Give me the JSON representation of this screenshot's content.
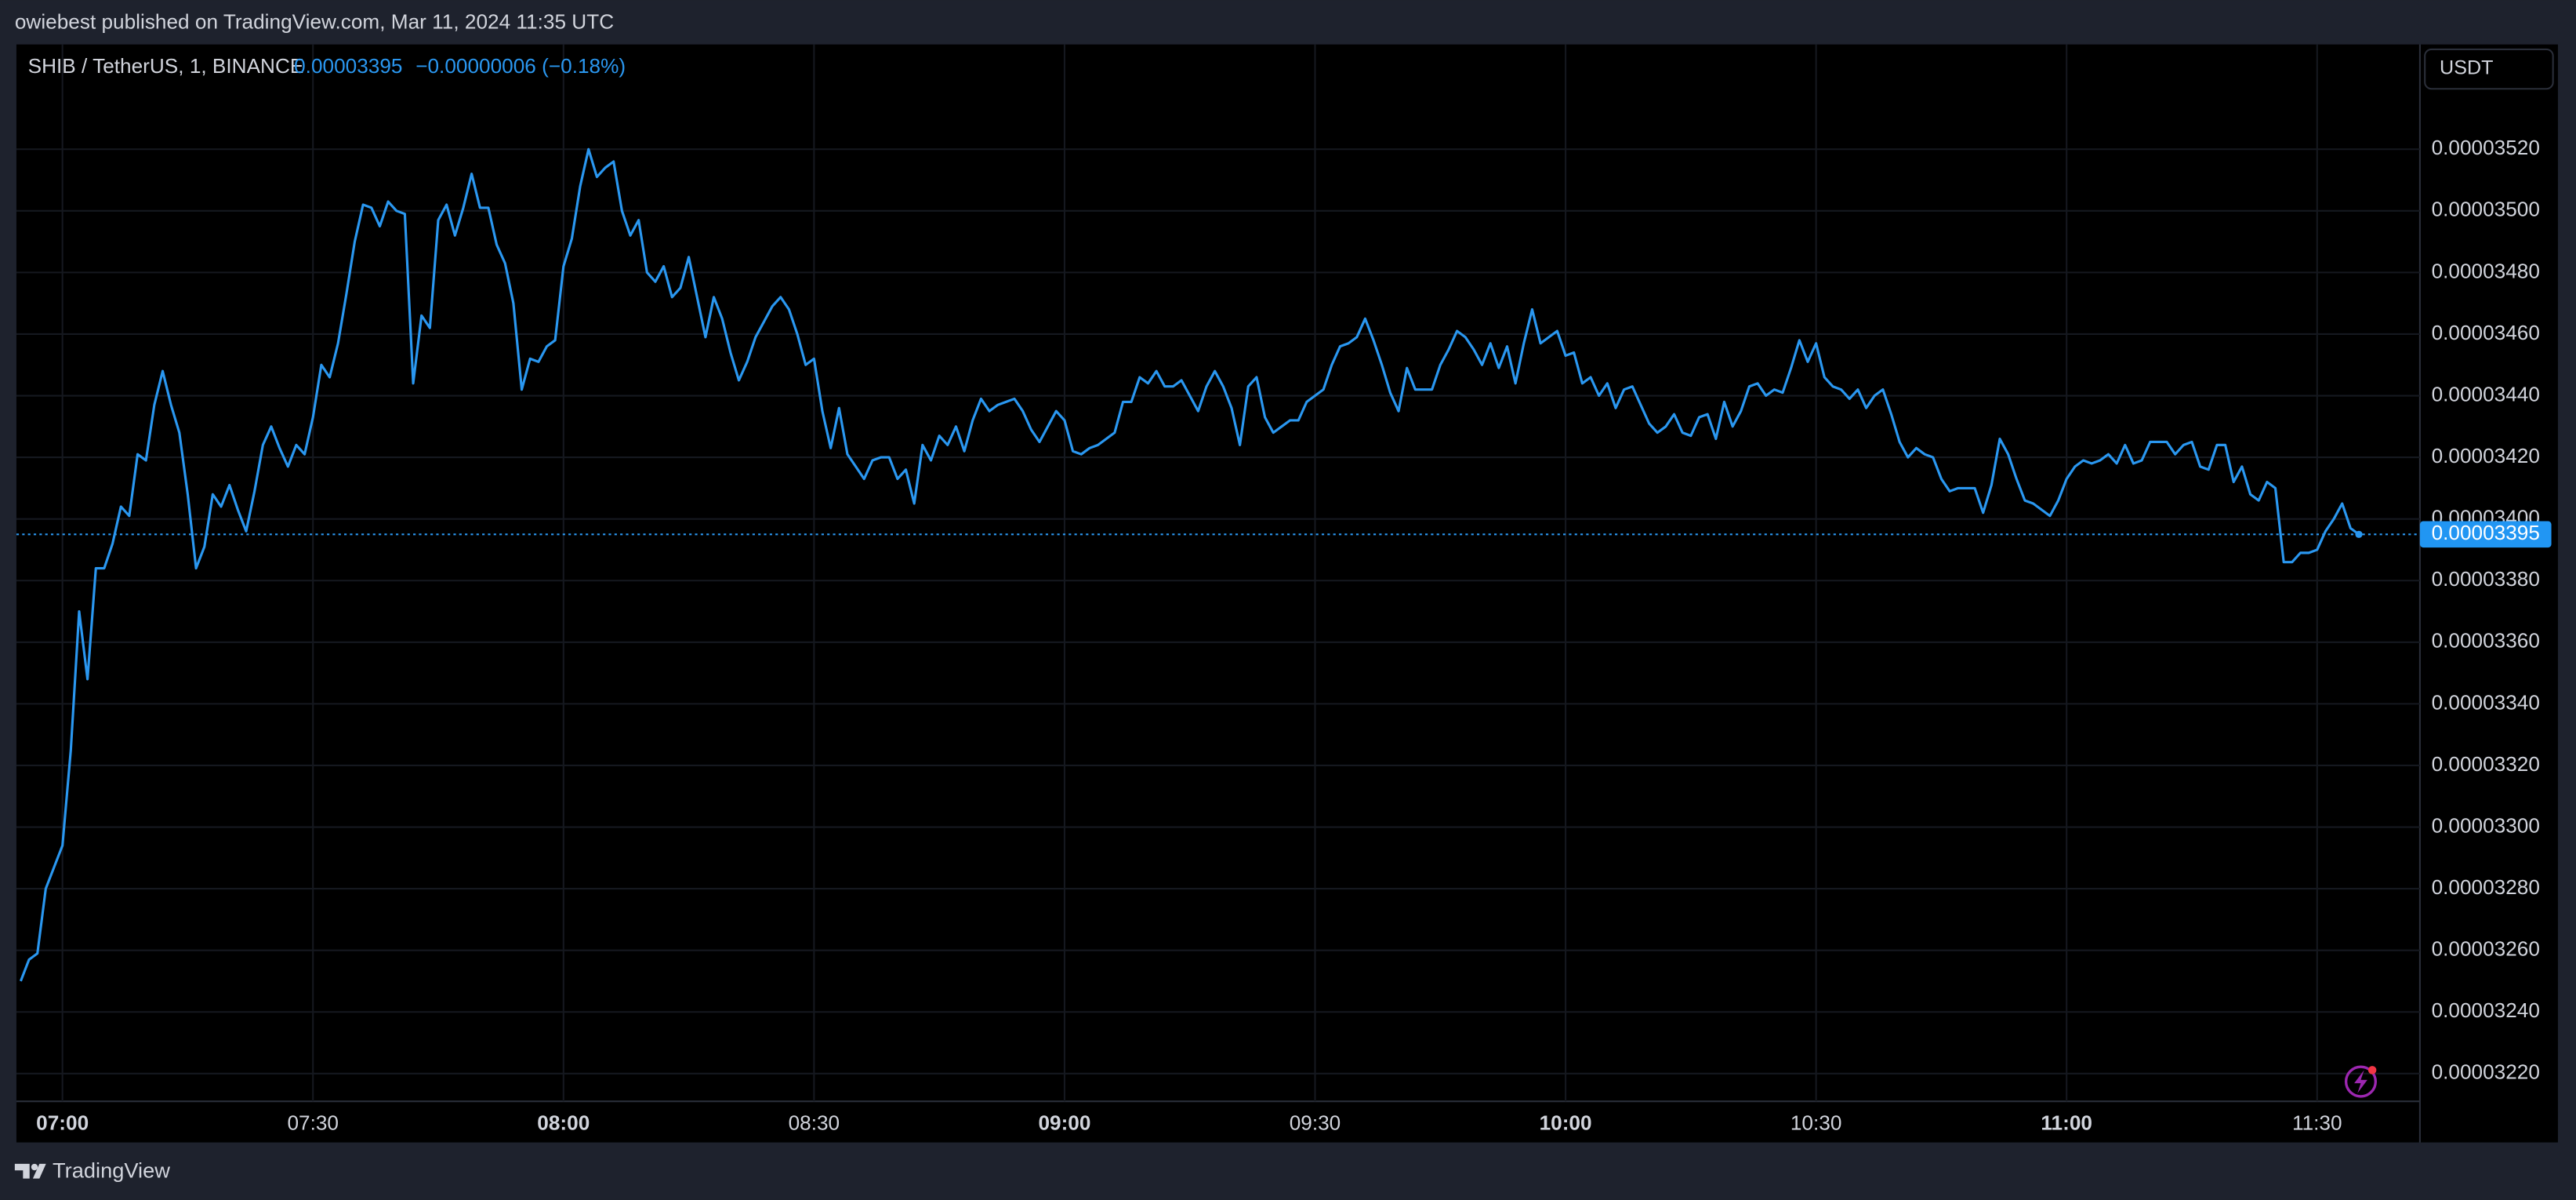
{
  "page": {
    "header": "owiebest published on TradingView.com, Mar 11, 2024 11:35 UTC",
    "footer": "TradingView"
  },
  "chart_data": {
    "type": "line",
    "title": "SHIB / TetherUS, 1, BINANCE",
    "change_label": "−0.00000006 (−0.18%)",
    "currency": "USDT",
    "color": "#2a97f0",
    "grid": true,
    "last_price": {
      "value": 3.395e-05,
      "label": "0.00003395"
    },
    "ylim": [
      3.211e-05,
      3.554e-05
    ],
    "yticks": [
      {
        "value": 3.22e-05,
        "label": "0.00003220"
      },
      {
        "value": 3.24e-05,
        "label": "0.00003240"
      },
      {
        "value": 3.26e-05,
        "label": "0.00003260"
      },
      {
        "value": 3.28e-05,
        "label": "0.00003280"
      },
      {
        "value": 3.3e-05,
        "label": "0.00003300"
      },
      {
        "value": 3.32e-05,
        "label": "0.00003320"
      },
      {
        "value": 3.34e-05,
        "label": "0.00003340"
      },
      {
        "value": 3.36e-05,
        "label": "0.00003360"
      },
      {
        "value": 3.38e-05,
        "label": "0.00003380"
      },
      {
        "value": 3.4e-05,
        "label": "0.00003400"
      },
      {
        "value": 3.42e-05,
        "label": "0.00003420"
      },
      {
        "value": 3.44e-05,
        "label": "0.00003440"
      },
      {
        "value": 3.46e-05,
        "label": "0.00003460"
      },
      {
        "value": 3.48e-05,
        "label": "0.00003480"
      },
      {
        "value": 3.5e-05,
        "label": "0.00003500"
      },
      {
        "value": 3.52e-05,
        "label": "0.00003520"
      }
    ],
    "xticks": [
      "07:00",
      "07:30",
      "08:00",
      "08:30",
      "09:00",
      "09:30",
      "10:00",
      "10:30",
      "11:00",
      "11:30"
    ],
    "x": [
      "06:55",
      "06:56",
      "06:57",
      "06:58",
      "06:59",
      "07:00",
      "07:01",
      "07:02",
      "07:03",
      "07:04",
      "07:05",
      "07:06",
      "07:07",
      "07:08",
      "07:09",
      "07:10",
      "07:11",
      "07:12",
      "07:13",
      "07:14",
      "07:15",
      "07:16",
      "07:17",
      "07:18",
      "07:19",
      "07:20",
      "07:21",
      "07:22",
      "07:23",
      "07:24",
      "07:25",
      "07:26",
      "07:27",
      "07:28",
      "07:29",
      "07:30",
      "07:31",
      "07:32",
      "07:33",
      "07:34",
      "07:35",
      "07:36",
      "07:37",
      "07:38",
      "07:39",
      "07:40",
      "07:41",
      "07:42",
      "07:43",
      "07:44",
      "07:45",
      "07:46",
      "07:47",
      "07:48",
      "07:49",
      "07:50",
      "07:51",
      "07:52",
      "07:53",
      "07:54",
      "07:55",
      "07:56",
      "07:57",
      "07:58",
      "07:59",
      "08:00",
      "08:01",
      "08:02",
      "08:03",
      "08:04",
      "08:05",
      "08:06",
      "08:07",
      "08:08",
      "08:09",
      "08:10",
      "08:11",
      "08:12",
      "08:13",
      "08:14",
      "08:15",
      "08:16",
      "08:17",
      "08:18",
      "08:19",
      "08:20",
      "08:21",
      "08:22",
      "08:23",
      "08:24",
      "08:25",
      "08:26",
      "08:27",
      "08:28",
      "08:29",
      "08:30",
      "08:31",
      "08:32",
      "08:33",
      "08:34",
      "08:35",
      "08:36",
      "08:37",
      "08:38",
      "08:39",
      "08:40",
      "08:41",
      "08:42",
      "08:43",
      "08:44",
      "08:45",
      "08:46",
      "08:47",
      "08:48",
      "08:49",
      "08:50",
      "08:51",
      "08:52",
      "08:53",
      "08:54",
      "08:55",
      "08:56",
      "08:57",
      "08:58",
      "08:59",
      "09:00",
      "09:01",
      "09:02",
      "09:03",
      "09:04",
      "09:05",
      "09:06",
      "09:07",
      "09:08",
      "09:09",
      "09:10",
      "09:11",
      "09:12",
      "09:13",
      "09:14",
      "09:15",
      "09:16",
      "09:17",
      "09:18",
      "09:19",
      "09:20",
      "09:21",
      "09:22",
      "09:23",
      "09:24",
      "09:25",
      "09:26",
      "09:27",
      "09:28",
      "09:29",
      "09:30",
      "09:31",
      "09:32",
      "09:33",
      "09:34",
      "09:35",
      "09:36",
      "09:37",
      "09:38",
      "09:39",
      "09:40",
      "09:41",
      "09:42",
      "09:43",
      "09:44",
      "09:45",
      "09:46",
      "09:47",
      "09:48",
      "09:49",
      "09:50",
      "09:51",
      "09:52",
      "09:53",
      "09:54",
      "09:55",
      "09:56",
      "09:57",
      "09:58",
      "09:59",
      "10:00",
      "10:01",
      "10:02",
      "10:03",
      "10:04",
      "10:05",
      "10:06",
      "10:07",
      "10:08",
      "10:09",
      "10:10",
      "10:11",
      "10:12",
      "10:13",
      "10:14",
      "10:15",
      "10:16",
      "10:17",
      "10:18",
      "10:19",
      "10:20",
      "10:21",
      "10:22",
      "10:23",
      "10:24",
      "10:25",
      "10:26",
      "10:27",
      "10:28",
      "10:29",
      "10:30",
      "10:31",
      "10:32",
      "10:33",
      "10:34",
      "10:35",
      "10:36",
      "10:37",
      "10:38",
      "10:39",
      "10:40",
      "10:41",
      "10:42",
      "10:43",
      "10:44",
      "10:45",
      "10:46",
      "10:47",
      "10:48",
      "10:49",
      "10:50",
      "10:51",
      "10:52",
      "10:53",
      "10:54",
      "10:55",
      "10:56",
      "10:57",
      "10:58",
      "10:59",
      "11:00",
      "11:01",
      "11:02",
      "11:03",
      "11:04",
      "11:05",
      "11:06",
      "11:07",
      "11:08",
      "11:09",
      "11:10",
      "11:11",
      "11:12",
      "11:13",
      "11:14",
      "11:15",
      "11:16",
      "11:17",
      "11:18",
      "11:19",
      "11:20",
      "11:21",
      "11:22",
      "11:23",
      "11:24",
      "11:25",
      "11:26",
      "11:27",
      "11:28",
      "11:29",
      "11:30",
      "11:31",
      "11:32",
      "11:33",
      "11:34",
      "11:35"
    ],
    "values": [
      3.25e-05,
      3.257e-05,
      3.259e-05,
      3.28e-05,
      3.287e-05,
      3.294e-05,
      3.325e-05,
      3.37e-05,
      3.348e-05,
      3.384e-05,
      3.384e-05,
      3.392e-05,
      3.404e-05,
      3.401e-05,
      3.421e-05,
      3.419e-05,
      3.437e-05,
      3.448e-05,
      3.437e-05,
      3.428e-05,
      3.408e-05,
      3.384e-05,
      3.391e-05,
      3.408e-05,
      3.404e-05,
      3.411e-05,
      3.403e-05,
      3.396e-05,
      3.409e-05,
      3.424e-05,
      3.43e-05,
      3.423e-05,
      3.417e-05,
      3.424e-05,
      3.421e-05,
      3.433e-05,
      3.45e-05,
      3.446e-05,
      3.457e-05,
      3.473e-05,
      3.49e-05,
      3.502e-05,
      3.501e-05,
      3.495e-05,
      3.503e-05,
      3.5e-05,
      3.499e-05,
      3.444e-05,
      3.466e-05,
      3.462e-05,
      3.497e-05,
      3.502e-05,
      3.492e-05,
      3.501e-05,
      3.512e-05,
      3.501e-05,
      3.501e-05,
      3.489e-05,
      3.483e-05,
      3.47e-05,
      3.442e-05,
      3.452e-05,
      3.451e-05,
      3.456e-05,
      3.458e-05,
      3.482e-05,
      3.491e-05,
      3.508e-05,
      3.52e-05,
      3.511e-05,
      3.514e-05,
      3.516e-05,
      3.5e-05,
      3.492e-05,
      3.497e-05,
      3.48e-05,
      3.477e-05,
      3.482e-05,
      3.472e-05,
      3.475e-05,
      3.485e-05,
      3.472e-05,
      3.459e-05,
      3.472e-05,
      3.465e-05,
      3.454e-05,
      3.445e-05,
      3.451e-05,
      3.459e-05,
      3.464e-05,
      3.469e-05,
      3.472e-05,
      3.468e-05,
      3.46e-05,
      3.45e-05,
      3.452e-05,
      3.435e-05,
      3.423e-05,
      3.436e-05,
      3.421e-05,
      3.417e-05,
      3.413e-05,
      3.419e-05,
      3.42e-05,
      3.42e-05,
      3.413e-05,
      3.416e-05,
      3.405e-05,
      3.424e-05,
      3.419e-05,
      3.427e-05,
      3.424e-05,
      3.43e-05,
      3.422e-05,
      3.432e-05,
      3.439e-05,
      3.435e-05,
      3.437e-05,
      3.438e-05,
      3.439e-05,
      3.435e-05,
      3.429e-05,
      3.425e-05,
      3.43e-05,
      3.435e-05,
      3.432e-05,
      3.422e-05,
      3.421e-05,
      3.423e-05,
      3.424e-05,
      3.426e-05,
      3.428e-05,
      3.438e-05,
      3.438e-05,
      3.446e-05,
      3.444e-05,
      3.448e-05,
      3.443e-05,
      3.443e-05,
      3.445e-05,
      3.44e-05,
      3.435e-05,
      3.443e-05,
      3.448e-05,
      3.443e-05,
      3.436e-05,
      3.424e-05,
      3.443e-05,
      3.446e-05,
      3.433e-05,
      3.428e-05,
      3.43e-05,
      3.432e-05,
      3.432e-05,
      3.438e-05,
      3.44e-05,
      3.442e-05,
      3.45e-05,
      3.456e-05,
      3.457e-05,
      3.459e-05,
      3.465e-05,
      3.458e-05,
      3.45e-05,
      3.441e-05,
      3.435e-05,
      3.449e-05,
      3.442e-05,
      3.442e-05,
      3.442e-05,
      3.45e-05,
      3.455e-05,
      3.461e-05,
      3.459e-05,
      3.455e-05,
      3.45e-05,
      3.457e-05,
      3.449e-05,
      3.456e-05,
      3.444e-05,
      3.457e-05,
      3.468e-05,
      3.457e-05,
      3.459e-05,
      3.461e-05,
      3.453e-05,
      3.454e-05,
      3.444e-05,
      3.446e-05,
      3.44e-05,
      3.444e-05,
      3.436e-05,
      3.442e-05,
      3.443e-05,
      3.437e-05,
      3.431e-05,
      3.428e-05,
      3.43e-05,
      3.434e-05,
      3.428e-05,
      3.427e-05,
      3.433e-05,
      3.434e-05,
      3.426e-05,
      3.438e-05,
      3.43e-05,
      3.435e-05,
      3.443e-05,
      3.444e-05,
      3.44e-05,
      3.442e-05,
      3.441e-05,
      3.449e-05,
      3.458e-05,
      3.451e-05,
      3.457e-05,
      3.446e-05,
      3.443e-05,
      3.442e-05,
      3.439e-05,
      3.442e-05,
      3.436e-05,
      3.44e-05,
      3.442e-05,
      3.434e-05,
      3.425e-05,
      3.42e-05,
      3.423e-05,
      3.421e-05,
      3.42e-05,
      3.413e-05,
      3.409e-05,
      3.41e-05,
      3.41e-05,
      3.41e-05,
      3.402e-05,
      3.411e-05,
      3.426e-05,
      3.421e-05,
      3.413e-05,
      3.406e-05,
      3.405e-05,
      3.403e-05,
      3.401e-05,
      3.406e-05,
      3.413e-05,
      3.417e-05,
      3.419e-05,
      3.418e-05,
      3.419e-05,
      3.421e-05,
      3.418e-05,
      3.424e-05,
      3.418e-05,
      3.419e-05,
      3.425e-05,
      3.425e-05,
      3.425e-05,
      3.421e-05,
      3.424e-05,
      3.425e-05,
      3.417e-05,
      3.416e-05,
      3.424e-05,
      3.424e-05,
      3.412e-05,
      3.417e-05,
      3.408e-05,
      3.406e-05,
      3.412e-05,
      3.41e-05,
      3.386e-05,
      3.386e-05,
      3.389e-05,
      3.389e-05,
      3.39e-05,
      3.396e-05,
      3.4e-05,
      3.405e-05,
      3.397e-05,
      3.395e-05
    ]
  }
}
